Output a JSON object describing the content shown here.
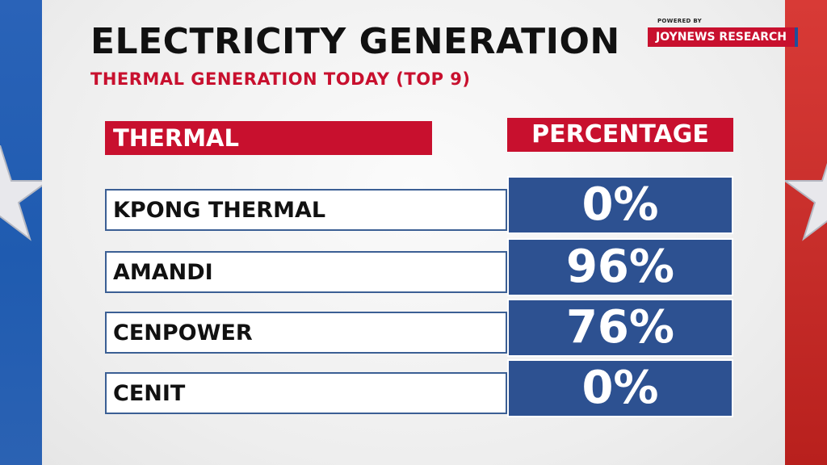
{
  "header": {
    "title": "ELECTRICITY GENERATION",
    "subtitle": "THERMAL GENERATION TODAY (TOP 9)",
    "powered_by": "POWERED BY",
    "brand": "JOYNEWS RESEARCH"
  },
  "table": {
    "col_name": "THERMAL",
    "col_value": "PERCENTAGE",
    "rows": [
      {
        "name": "KPONG THERMAL",
        "value": "0%"
      },
      {
        "name": "AMANDI",
        "value": "96%"
      },
      {
        "name": "CENPOWER",
        "value": "76%"
      },
      {
        "name": "CENIT",
        "value": "0%"
      }
    ]
  },
  "colors": {
    "accent_red": "#c8102e",
    "value_blue": "#2d5191",
    "side_blue": "#1f5bb0",
    "side_red": "#c62d2a"
  },
  "chart_data": {
    "type": "table",
    "title": "ELECTRICITY GENERATION",
    "subtitle": "THERMAL GENERATION TODAY (TOP 9)",
    "columns": [
      "THERMAL",
      "PERCENTAGE"
    ],
    "categories": [
      "KPONG THERMAL",
      "AMANDI",
      "CENPOWER",
      "CENIT"
    ],
    "values": [
      0,
      96,
      76,
      0
    ]
  }
}
